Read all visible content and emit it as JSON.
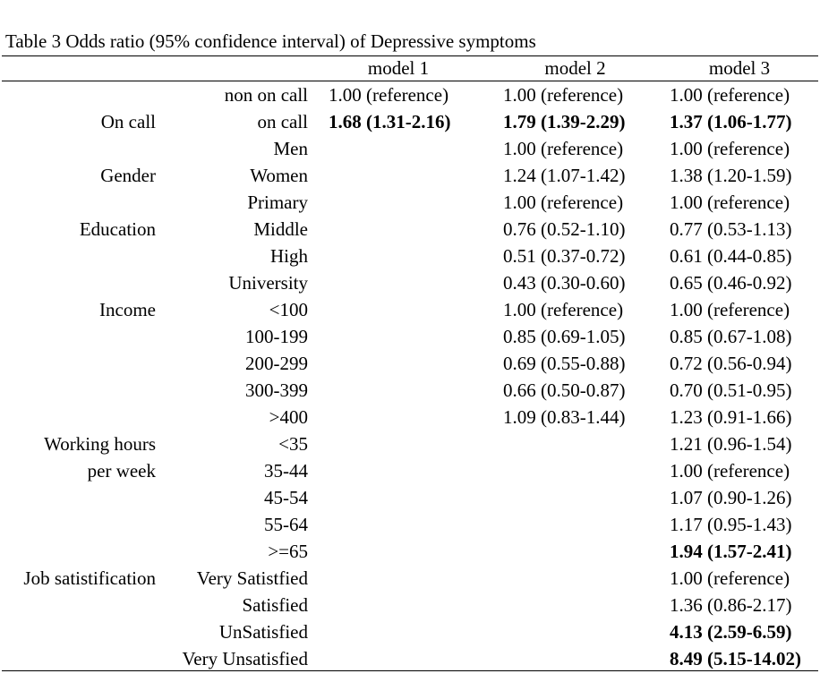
{
  "caption": "Table 3 Odds ratio (95% confidence interval) of Depressive symptoms",
  "headers": {
    "model1": "model 1",
    "model2": "model 2",
    "model3": "model 3"
  },
  "rows": [
    {
      "group": "",
      "sub": "non on call",
      "m1": "1.00 (reference)",
      "m2": "1.00 (reference)",
      "m3": "1.00 (reference)"
    },
    {
      "group": "On call",
      "sub": "on call",
      "m1": "1.68 (1.31-2.16)",
      "m2": "1.79 (1.39-2.29)",
      "m3": "1.37 (1.06-1.77)"
    },
    {
      "group": "",
      "sub": "Men",
      "m1": "",
      "m2": "1.00 (reference)",
      "m3": "1.00 (reference)"
    },
    {
      "group": "Gender",
      "sub": "Women",
      "m1": "",
      "m2": "1.24 (1.07-1.42)",
      "m3": "1.38 (1.20-1.59)"
    },
    {
      "group": "",
      "sub": "Primary",
      "m1": "",
      "m2": "1.00 (reference)",
      "m3": "1.00 (reference)"
    },
    {
      "group": "Education",
      "sub": "Middle",
      "m1": "",
      "m2": "0.76 (0.52-1.10)",
      "m3": "0.77 (0.53-1.13)"
    },
    {
      "group": "",
      "sub": "High",
      "m1": "",
      "m2": "0.51 (0.37-0.72)",
      "m3": "0.61 (0.44-0.85)"
    },
    {
      "group": "",
      "sub": "University",
      "m1": "",
      "m2": "0.43 (0.30-0.60)",
      "m3": "0.65 (0.46-0.92)"
    },
    {
      "group": "Income",
      "sub": "<100",
      "m1": "",
      "m2": "1.00 (reference)",
      "m3": "1.00 (reference)"
    },
    {
      "group": "",
      "sub": "100-199",
      "m1": "",
      "m2": "0.85 (0.69-1.05)",
      "m3": "0.85 (0.67-1.08)"
    },
    {
      "group": "",
      "sub": "200-299",
      "m1": "",
      "m2": "0.69 (0.55-0.88)",
      "m3": "0.72 (0.56-0.94)"
    },
    {
      "group": "",
      "sub": "300-399",
      "m1": "",
      "m2": "0.66 (0.50-0.87)",
      "m3": "0.70 (0.51-0.95)"
    },
    {
      "group": "",
      "sub": ">400",
      "m1": "",
      "m2": "1.09 (0.83-1.44)",
      "m3": "1.23 (0.91-1.66)"
    },
    {
      "group": "Working hours",
      "sub": "<35",
      "m1": "",
      "m2": "",
      "m3": "1.21 (0.96-1.54)"
    },
    {
      "group": "per week",
      "sub": "35-44",
      "m1": "",
      "m2": "",
      "m3": "1.00 (reference)"
    },
    {
      "group": "",
      "sub": "45-54",
      "m1": "",
      "m2": "",
      "m3": "1.07 (0.90-1.26)"
    },
    {
      "group": "",
      "sub": "55-64",
      "m1": "",
      "m2": "",
      "m3": "1.17 (0.95-1.43)"
    },
    {
      "group": "",
      "sub": ">=65",
      "m1": "",
      "m2": "",
      "m3": "1.94 (1.57-2.41)"
    },
    {
      "group": "Job satistification",
      "sub": "Very Satistfied",
      "m1": "",
      "m2": "",
      "m3": "1.00 (reference)"
    },
    {
      "group": "",
      "sub": "Satisfied",
      "m1": "",
      "m2": "",
      "m3": "1.36 (0.86-2.17)"
    },
    {
      "group": "",
      "sub": "UnSatisfied",
      "m1": "",
      "m2": "",
      "m3": "4.13 (2.59-6.59)"
    },
    {
      "group": "",
      "sub": "Very Unsatisfied",
      "m1": "",
      "m2": "",
      "m3": "8.49 (5.15-14.02)"
    }
  ],
  "bold_cells": [
    "1.m1",
    "1.m2",
    "1.m3",
    "17.m3",
    "20.m3",
    "21.m3"
  ]
}
